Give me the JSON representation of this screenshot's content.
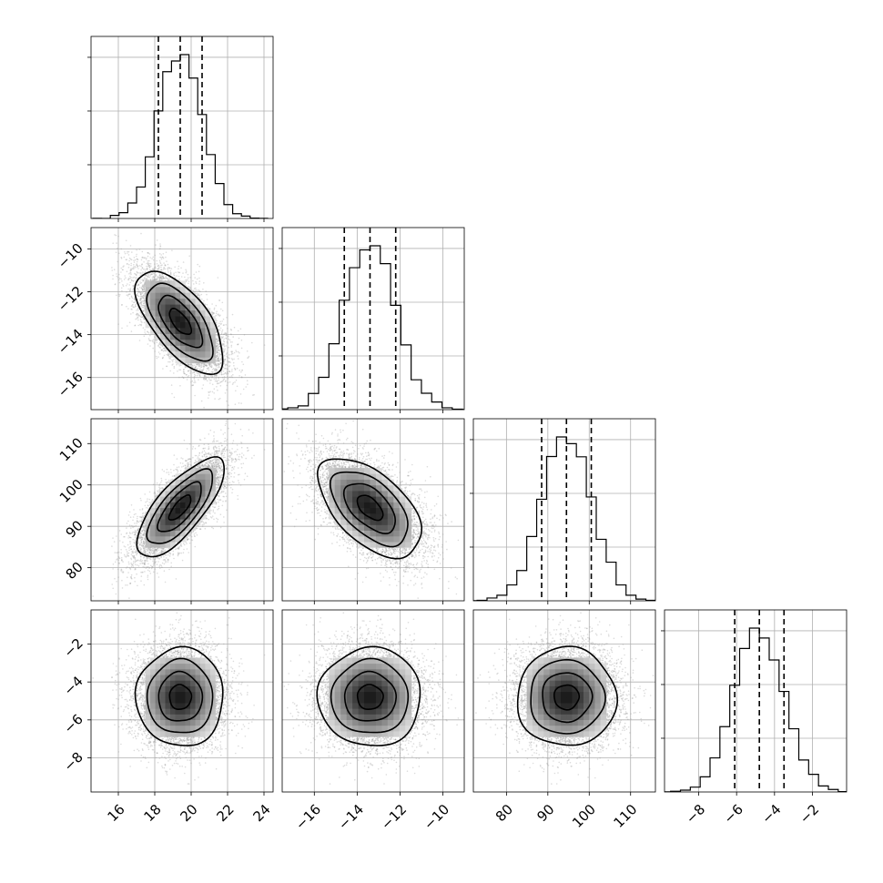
{
  "chart_data": {
    "type": "corner",
    "title": "",
    "parameters": [
      {
        "label": "",
        "range": [
          14.5,
          24.5
        ],
        "ticks": [
          16,
          18,
          20,
          22,
          24
        ],
        "mean": 19.4,
        "std": 1.2,
        "quantiles": [
          18.2,
          19.4,
          20.6
        ],
        "hist_ticks_count": 3
      },
      {
        "label": "",
        "range": [
          -17.5,
          -9.0
        ],
        "ticks": [
          -16,
          -14,
          -12,
          -10
        ],
        "mean": -13.4,
        "std": 1.2,
        "quantiles": [
          -14.6,
          -13.4,
          -12.2
        ],
        "hist_ticks_count": 3
      },
      {
        "label": "",
        "range": [
          72,
          116
        ],
        "ticks": [
          80,
          90,
          100,
          110
        ],
        "mean": 94.5,
        "std": 6.0,
        "quantiles": [
          88.5,
          94.5,
          100.5
        ],
        "hist_ticks_count": 3
      },
      {
        "label": "",
        "range": [
          -9.8,
          -0.2
        ],
        "ticks": [
          -8,
          -6,
          -4,
          -2
        ],
        "mean": -4.8,
        "std": 1.3,
        "quantiles": [
          -6.1,
          -4.8,
          -3.5
        ],
        "hist_ticks_count": 3
      }
    ],
    "correlations": [
      [
        1.0,
        -0.65,
        0.75,
        0.0
      ],
      [
        -0.65,
        1.0,
        -0.55,
        0.0
      ],
      [
        0.75,
        -0.55,
        1.0,
        0.0
      ],
      [
        0.0,
        0.0,
        0.0,
        1.0
      ]
    ],
    "contour_levels_sigma": [
      0.5,
      1.0,
      1.5,
      2.0
    ],
    "histogram_bins": 20,
    "quantile_lines": "dashed",
    "grid": true,
    "samples": 8000
  }
}
